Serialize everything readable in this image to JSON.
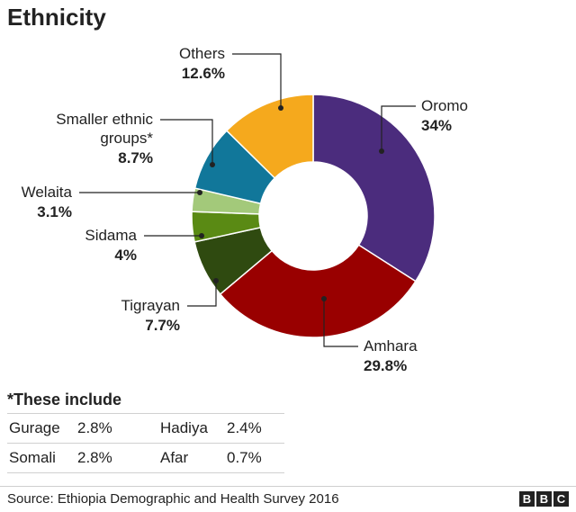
{
  "title": "Ethnicity",
  "chart_data": {
    "type": "pie",
    "donut": true,
    "slices": [
      {
        "name": "Oromo",
        "value": 34,
        "label": "34%",
        "color": "#4b2c7d"
      },
      {
        "name": "Amhara",
        "value": 29.8,
        "label": "29.8%",
        "color": "#990000"
      },
      {
        "name": "Tigrayan",
        "value": 7.7,
        "label": "7.7%",
        "color": "#2f4a10"
      },
      {
        "name": "Sidama",
        "value": 4,
        "label": "4%",
        "color": "#5a8a14"
      },
      {
        "name": "Welaita",
        "value": 3.1,
        "label": "3.1%",
        "color": "#a3c97a"
      },
      {
        "name": "Smaller ethnic groups*",
        "value": 8.7,
        "label": "8.7%",
        "color": "#11779a"
      },
      {
        "name": "Others",
        "value": 12.6,
        "label": "12.6%",
        "color": "#f5a91d"
      }
    ]
  },
  "note": {
    "title": "*These include",
    "rows": [
      {
        "name1": "Gurage",
        "val1": "2.8%",
        "name2": "Hadiya",
        "val2": "2.4%"
      },
      {
        "name1": "Somali",
        "val1": "2.8%",
        "name2": "Afar",
        "val2": "0.7%"
      }
    ]
  },
  "source": "Source: Ethiopia Demographic and Health Survey 2016",
  "logo": [
    "B",
    "B",
    "C"
  ]
}
